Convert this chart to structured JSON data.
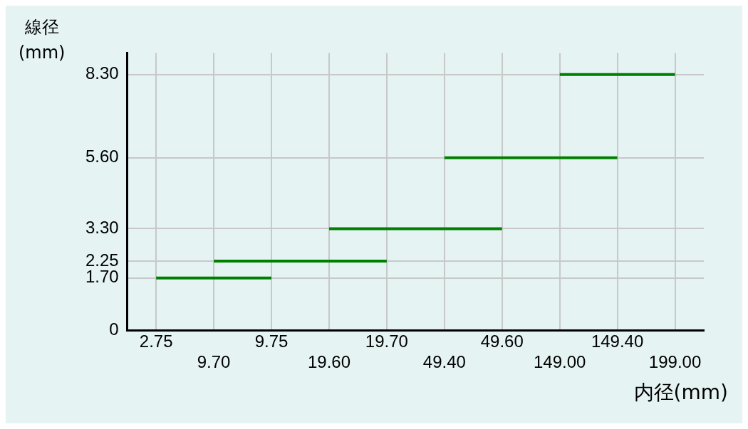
{
  "chart_data": {
    "type": "line",
    "xlabel": "内径(mm)",
    "ylabel": "線径(mm)",
    "categories": [
      "2.75",
      "9.70",
      "9.75",
      "19.60",
      "19.70",
      "49.40",
      "49.60",
      "149.00",
      "149.40",
      "199.00"
    ],
    "series": [
      {
        "color": "#008000",
        "values": [
          1.7,
          null,
          1.7,
          null,
          null,
          null,
          null,
          null,
          null,
          null
        ]
      },
      {
        "color": "#008000",
        "values": [
          null,
          2.25,
          null,
          null,
          2.25,
          null,
          null,
          null,
          null,
          null
        ]
      },
      {
        "color": "#008000",
        "values": [
          null,
          null,
          null,
          3.3,
          null,
          null,
          3.3,
          null,
          null,
          null
        ]
      },
      {
        "color": "#008000",
        "values": [
          null,
          null,
          null,
          null,
          null,
          5.6,
          null,
          null,
          5.6,
          null
        ]
      },
      {
        "color": "#008000",
        "values": [
          null,
          null,
          null,
          null,
          null,
          null,
          null,
          8.3,
          null,
          8.3
        ]
      }
    ],
    "ylim": [
      0,
      9
    ],
    "yticks": [
      0,
      {
        "value": 1.7,
        "label": "1.70"
      },
      {
        "value": 2.25,
        "label": "2.25"
      },
      {
        "value": 3.3,
        "label": "3.30"
      },
      {
        "value": 5.6,
        "label": "5.60"
      },
      {
        "value": 8.3,
        "label": "8.30"
      }
    ],
    "grid": true,
    "legend": false,
    "marker": "none",
    "line_style": "solid"
  }
}
